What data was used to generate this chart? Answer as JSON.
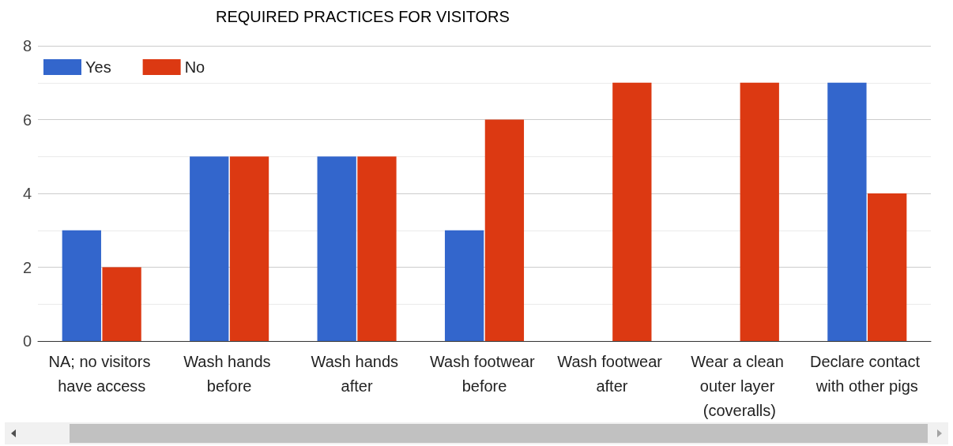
{
  "chart_data": {
    "type": "bar",
    "title": "REQUIRED PRACTICES FOR VISITORS",
    "categories": [
      "NA; no visitors have access",
      "Wash hands before",
      "Wash hands after",
      "Wash footwear before",
      "Wash footwear after",
      "Wear a clean outer layer (coveralls)",
      "Declare contact with other pigs"
    ],
    "series": [
      {
        "name": "Yes",
        "color": "#3366cc",
        "values": [
          3,
          5,
          5,
          3,
          0,
          0,
          7
        ]
      },
      {
        "name": "No",
        "color": "#dc3912",
        "values": [
          2,
          5,
          5,
          6,
          7,
          7,
          4
        ]
      }
    ],
    "ylim": [
      0,
      8
    ],
    "yticks": [
      0,
      2,
      4,
      6,
      8
    ],
    "grid": "y",
    "legend": "top left"
  }
}
